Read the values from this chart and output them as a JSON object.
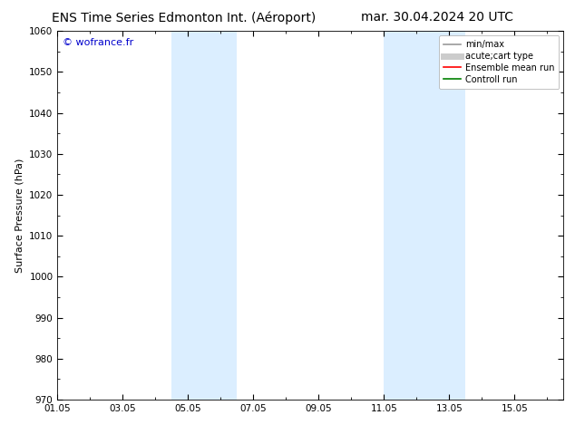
{
  "title_left": "ENS Time Series Edmonton Int. (Aéroport)",
  "title_right": "mar. 30.04.2024 20 UTC",
  "ylabel": "Surface Pressure (hPa)",
  "ylim": [
    970,
    1060
  ],
  "yticks": [
    970,
    980,
    990,
    1000,
    1010,
    1020,
    1030,
    1040,
    1050,
    1060
  ],
  "xlim_start": 0.0,
  "xlim_end": 15.5,
  "xtick_labels": [
    "01.05",
    "03.05",
    "05.05",
    "07.05",
    "09.05",
    "11.05",
    "13.05",
    "15.05"
  ],
  "xtick_positions": [
    0,
    2,
    4,
    6,
    8,
    10,
    12,
    14
  ],
  "shaded_bands": [
    {
      "xmin": 3.5,
      "xmax": 5.5
    },
    {
      "xmin": 10.0,
      "xmax": 12.5
    }
  ],
  "shade_color": "#dbeeff",
  "watermark": "© wofrance.fr",
  "watermark_color": "#0000cc",
  "background_color": "#ffffff",
  "legend_entries": [
    {
      "label": "min/max",
      "color": "#999999",
      "lw": 1.2,
      "style": "-"
    },
    {
      "label": "acute;cart type",
      "color": "#cccccc",
      "lw": 5,
      "style": "-"
    },
    {
      "label": "Ensemble mean run",
      "color": "#ff0000",
      "lw": 1.2,
      "style": "-"
    },
    {
      "label": "Controll run",
      "color": "#008000",
      "lw": 1.2,
      "style": "-"
    }
  ],
  "title_fontsize": 10,
  "axis_label_fontsize": 8,
  "tick_fontsize": 7.5,
  "legend_fontsize": 7,
  "figsize": [
    6.34,
    4.9
  ],
  "dpi": 100
}
